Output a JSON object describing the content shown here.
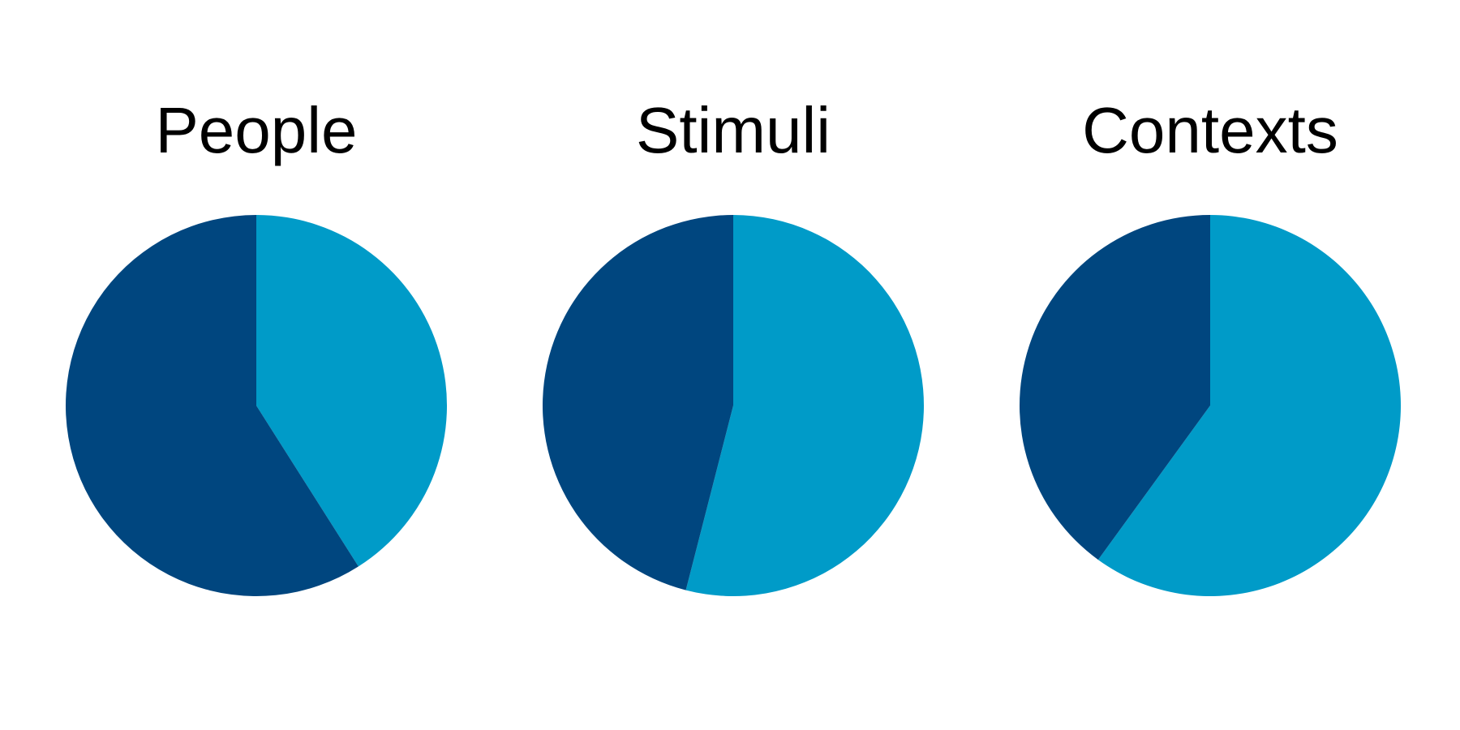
{
  "chart_data": [
    {
      "type": "pie",
      "title": "People",
      "slices": [
        {
          "value": 0.41,
          "color": "#009bc8"
        },
        {
          "value": 0.59,
          "color": "#00467f"
        }
      ]
    },
    {
      "type": "pie",
      "title": "Stimuli",
      "slices": [
        {
          "value": 0.54,
          "color": "#009bc8"
        },
        {
          "value": 0.46,
          "color": "#00467f"
        }
      ]
    },
    {
      "type": "pie",
      "title": "Contexts",
      "slices": [
        {
          "value": 0.6,
          "color": "#009bc8"
        },
        {
          "value": 0.4,
          "color": "#00467f"
        }
      ]
    }
  ]
}
